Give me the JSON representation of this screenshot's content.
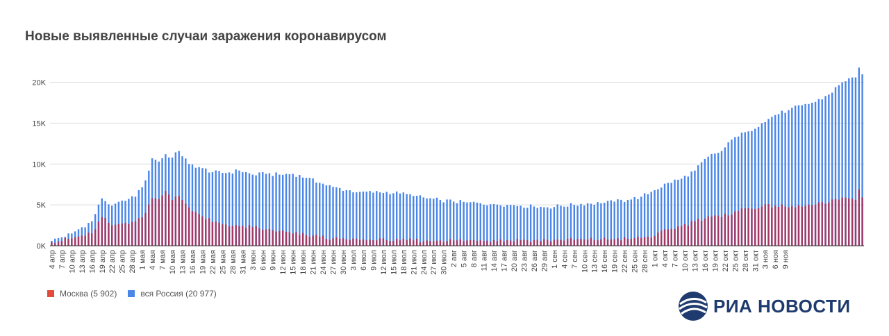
{
  "chart_data": {
    "type": "bar",
    "title": "Новые выявленные случаи заражения коронавирусом",
    "start_date": "2020-04-04",
    "ylim": [
      0,
      22000
    ],
    "y_ticks": [
      {
        "value": 0,
        "label": "0K"
      },
      {
        "value": 5000,
        "label": "5K"
      },
      {
        "value": 10000,
        "label": "10K"
      },
      {
        "value": 15000,
        "label": "15K"
      },
      {
        "value": 20000,
        "label": "20K"
      }
    ],
    "x_tick_labels": [
      "4 апр",
      "7 апр",
      "10 апр",
      "13 апр",
      "16 апр",
      "19 апр",
      "22 апр",
      "25 апр",
      "28 апр",
      "1 мая",
      "4 мая",
      "7 мая",
      "10 мая",
      "13 мая",
      "16 мая",
      "19 мая",
      "22 мая",
      "25 мая",
      "28 мая",
      "31 мая",
      "3 июн",
      "6 июн",
      "9 июн",
      "12 июн",
      "15 июн",
      "18 июн",
      "21 июн",
      "24 июн",
      "27 июн",
      "30 июн",
      "3 июл",
      "6 июл",
      "9 июл",
      "12 июл",
      "15 июл",
      "18 июл",
      "21 июл",
      "24 июл",
      "27 июл",
      "30 июл",
      "2 авг",
      "5 авг",
      "8 авг",
      "11 авг",
      "14 авг",
      "17 авг",
      "20 авг",
      "23 авг",
      "26 авг",
      "29 авг",
      "1 сен",
      "4 сен",
      "7 сен",
      "10 сен",
      "13 сен",
      "16 сен",
      "19 сен",
      "22 сен",
      "25 сен",
      "28 сен",
      "1 окт",
      "4 окт",
      "7 окт",
      "10 окт",
      "13 окт",
      "16 окт",
      "19 окт",
      "22 окт",
      "25 окт",
      "28 окт",
      "31 окт",
      "3 ноя",
      "6 ноя",
      "9 ноя"
    ],
    "grid": true,
    "legend_position": "bottom-left",
    "series": [
      {
        "name": "вся Россия (20 977)",
        "color": "#4a86e8",
        "anchors": [
          [
            0,
            600
          ],
          [
            6,
            1500
          ],
          [
            12,
            3000
          ],
          [
            15,
            5800
          ],
          [
            18,
            4900
          ],
          [
            22,
            5500
          ],
          [
            25,
            6000
          ],
          [
            28,
            8000
          ],
          [
            30,
            10700
          ],
          [
            32,
            10300
          ],
          [
            34,
            11200
          ],
          [
            36,
            10800
          ],
          [
            38,
            11600
          ],
          [
            41,
            10000
          ],
          [
            45,
            9500
          ],
          [
            48,
            9000
          ],
          [
            52,
            8900
          ],
          [
            56,
            9200
          ],
          [
            60,
            8700
          ],
          [
            64,
            8800
          ],
          [
            68,
            8700
          ],
          [
            72,
            8800
          ],
          [
            76,
            8300
          ],
          [
            80,
            7700
          ],
          [
            84,
            7200
          ],
          [
            88,
            6800
          ],
          [
            92,
            6600
          ],
          [
            96,
            6500
          ],
          [
            100,
            6600
          ],
          [
            104,
            6400
          ],
          [
            108,
            6100
          ],
          [
            112,
            5800
          ],
          [
            116,
            5600
          ],
          [
            120,
            5400
          ],
          [
            124,
            5300
          ],
          [
            128,
            5200
          ],
          [
            132,
            5100
          ],
          [
            136,
            5000
          ],
          [
            140,
            4900
          ],
          [
            144,
            4800
          ],
          [
            148,
            4700
          ],
          [
            152,
            4900
          ],
          [
            156,
            5000
          ],
          [
            160,
            5200
          ],
          [
            164,
            5200
          ],
          [
            168,
            5400
          ],
          [
            172,
            5600
          ],
          [
            176,
            6000
          ],
          [
            180,
            6800
          ],
          [
            184,
            7700
          ],
          [
            188,
            8200
          ],
          [
            192,
            9200
          ],
          [
            196,
            10900
          ],
          [
            200,
            11600
          ],
          [
            204,
            13300
          ],
          [
            208,
            14000
          ],
          [
            212,
            15000
          ],
          [
            216,
            16000
          ],
          [
            220,
            16600
          ],
          [
            224,
            17200
          ],
          [
            228,
            17600
          ],
          [
            232,
            18500
          ],
          [
            236,
            20000
          ],
          [
            238,
            20500
          ],
          [
            240,
            20600
          ],
          [
            241,
            21800
          ],
          [
            242,
            20977
          ]
        ],
        "noise": 250
      },
      {
        "name": "Москва (5 902)",
        "color": "#a13866",
        "anchors": [
          [
            0,
            450
          ],
          [
            6,
            900
          ],
          [
            12,
            1500
          ],
          [
            15,
            3500
          ],
          [
            18,
            2500
          ],
          [
            22,
            2800
          ],
          [
            25,
            3000
          ],
          [
            28,
            4000
          ],
          [
            30,
            5800
          ],
          [
            32,
            5700
          ],
          [
            34,
            6700
          ],
          [
            36,
            5600
          ],
          [
            38,
            6100
          ],
          [
            41,
            4700
          ],
          [
            45,
            3600
          ],
          [
            48,
            2900
          ],
          [
            52,
            2600
          ],
          [
            56,
            2400
          ],
          [
            60,
            2300
          ],
          [
            64,
            2000
          ],
          [
            68,
            1800
          ],
          [
            72,
            1500
          ],
          [
            76,
            1300
          ],
          [
            80,
            1100
          ],
          [
            84,
            900
          ],
          [
            88,
            800
          ],
          [
            92,
            700
          ],
          [
            96,
            680
          ],
          [
            100,
            670
          ],
          [
            104,
            660
          ],
          [
            108,
            650
          ],
          [
            112,
            650
          ],
          [
            116,
            650
          ],
          [
            120,
            640
          ],
          [
            124,
            650
          ],
          [
            128,
            660
          ],
          [
            132,
            680
          ],
          [
            136,
            690
          ],
          [
            140,
            700
          ],
          [
            144,
            700
          ],
          [
            148,
            700
          ],
          [
            152,
            700
          ],
          [
            156,
            720
          ],
          [
            160,
            750
          ],
          [
            164,
            780
          ],
          [
            168,
            800
          ],
          [
            172,
            850
          ],
          [
            176,
            950
          ],
          [
            180,
            1200
          ],
          [
            184,
            2000
          ],
          [
            188,
            2400
          ],
          [
            192,
            3000
          ],
          [
            196,
            3600
          ],
          [
            200,
            3500
          ],
          [
            204,
            4200
          ],
          [
            208,
            4600
          ],
          [
            212,
            4800
          ],
          [
            216,
            4900
          ],
          [
            220,
            4700
          ],
          [
            224,
            4800
          ],
          [
            228,
            5000
          ],
          [
            232,
            5300
          ],
          [
            236,
            5900
          ],
          [
            238,
            5800
          ],
          [
            240,
            5600
          ],
          [
            241,
            6900
          ],
          [
            242,
            5902
          ]
        ],
        "noise": 250
      }
    ]
  },
  "legend": {
    "moscow_label": "Москва (5 902)",
    "russia_label": "вся Россия (20 977)"
  },
  "logo": {
    "text": "РИА НОВОСТИ"
  }
}
